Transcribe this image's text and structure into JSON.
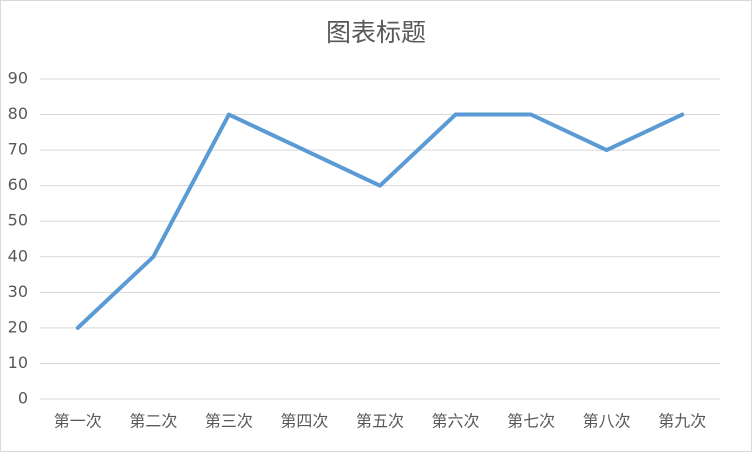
{
  "chart_data": {
    "type": "line",
    "title": "图表标题",
    "categories": [
      "第一次",
      "第二次",
      "第三次",
      "第四次",
      "第五次",
      "第六次",
      "第七次",
      "第八次",
      "第九次"
    ],
    "values": [
      20,
      40,
      80,
      70,
      60,
      80,
      80,
      70,
      80
    ],
    "color": "#5b9bd5",
    "ylim": [
      0,
      90
    ],
    "yticks": [
      0,
      10,
      20,
      30,
      40,
      50,
      60,
      70,
      80,
      90
    ],
    "grid": true
  }
}
